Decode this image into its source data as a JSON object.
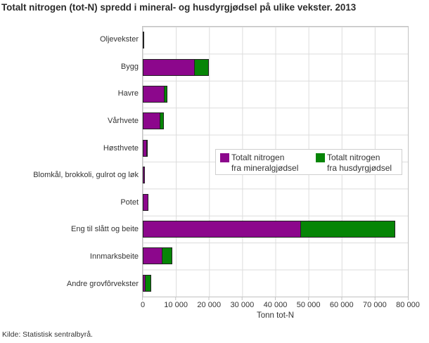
{
  "title": "Totalt nitrogen (tot-N) spredd i mineral- og husdyrgjødsel på ulike vekster. 2013",
  "source": "Kilde: Statistisk sentralbyrå.",
  "chart_data": {
    "type": "bar",
    "orientation": "horizontal",
    "stacked": true,
    "title": "Totalt nitrogen (tot-N) spredd i mineral- og husdyrgjødsel på ulike vekster. 2013",
    "xlabel": "Tonn tot-N",
    "xlim": [
      0,
      80000
    ],
    "x_ticks": [
      0,
      10000,
      20000,
      30000,
      40000,
      50000,
      60000,
      70000,
      80000
    ],
    "x_tick_labels": [
      "0",
      "10 000",
      "20 000",
      "30 000",
      "40 000",
      "50 000",
      "60 000",
      "70 000",
      "80 000"
    ],
    "grid": true,
    "legend_position": "inside-middle-right",
    "categories": [
      "Oljevekster",
      "Bygg",
      "Havre",
      "Vårhvete",
      "Høsthvete",
      "Blomkål, brokkoli, gulrot og løk",
      "Potet",
      "Eng til slått og beite",
      "Innmarksbeite",
      "Andre grovfôrvekster"
    ],
    "series": [
      {
        "name": "Totalt nitrogen fra mineralgjødsel",
        "color": "#8c078c",
        "values": [
          400,
          15600,
          6600,
          5300,
          1300,
          700,
          1600,
          47800,
          6000,
          900
        ]
      },
      {
        "name": "Totalt nitrogen fra husdyrgjødsel",
        "color": "#068506",
        "values": [
          0,
          4300,
          800,
          1000,
          200,
          0,
          0,
          28400,
          3000,
          1700
        ]
      }
    ],
    "legend_items": [
      {
        "line1": "Totalt nitrogen",
        "line2": "fra mineralgjødsel"
      },
      {
        "line1": "Totalt nitrogen",
        "line2": "fra husdyrgjødsel"
      }
    ]
  }
}
